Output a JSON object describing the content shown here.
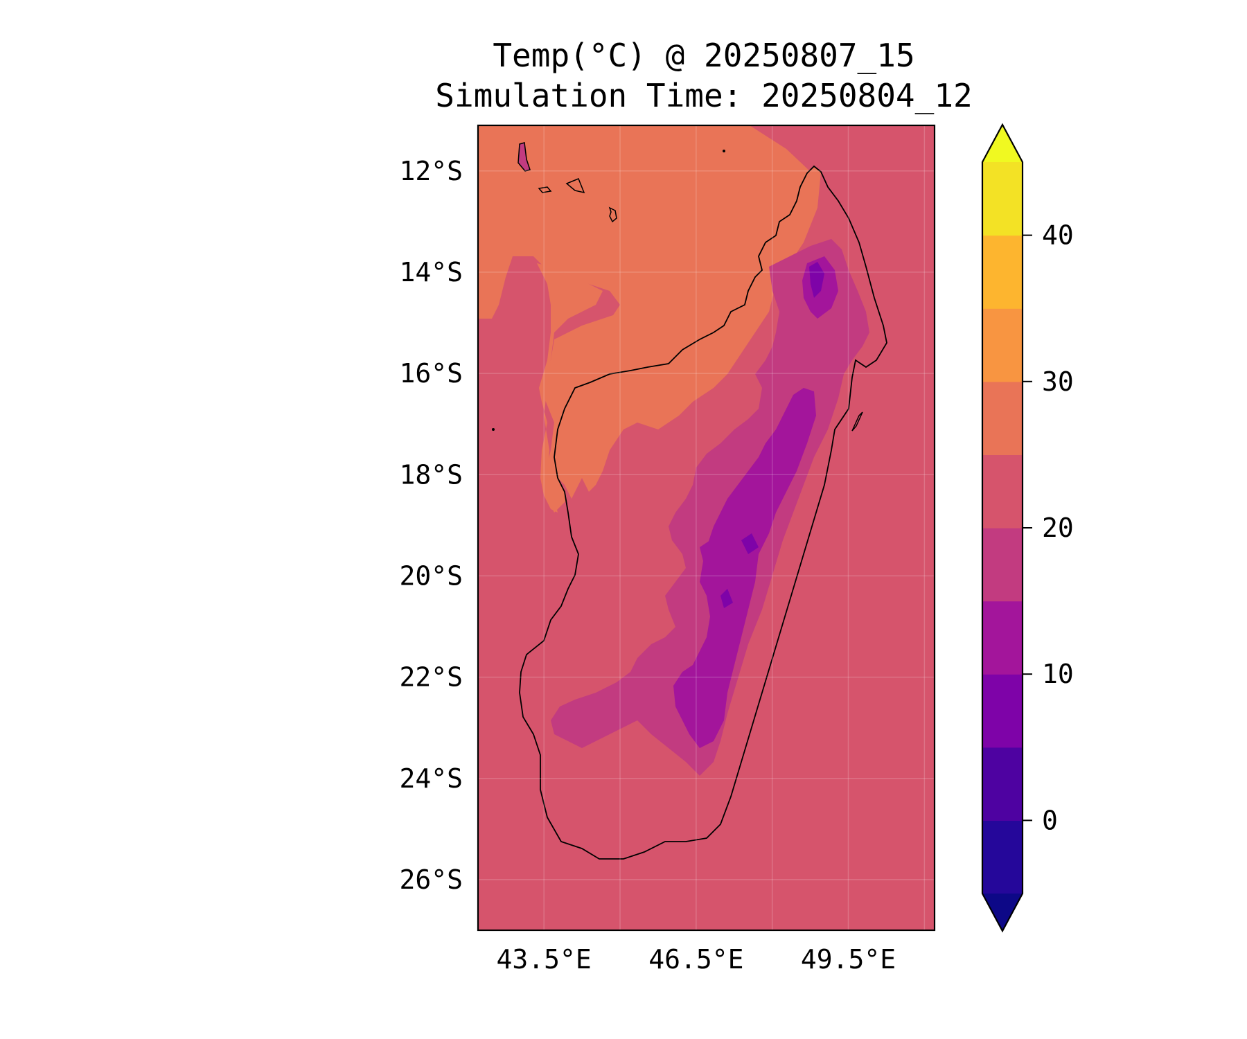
{
  "figure": {
    "title_line1": "Temp(°C) @ 20250807_15",
    "title_line2": "Simulation Time: 20250804_12"
  },
  "map": {
    "lon_range": [
      42.2,
      51.2
    ],
    "lat_range": [
      -27.0,
      -11.1
    ],
    "lat_ticks": [
      {
        "value": -12,
        "label": "12°S"
      },
      {
        "value": -14,
        "label": "14°S"
      },
      {
        "value": -16,
        "label": "16°S"
      },
      {
        "value": -18,
        "label": "18°S"
      },
      {
        "value": -20,
        "label": "20°S"
      },
      {
        "value": -22,
        "label": "22°S"
      },
      {
        "value": -24,
        "label": "24°S"
      },
      {
        "value": -26,
        "label": "26°S"
      }
    ],
    "lon_ticks": [
      {
        "value": 43.5,
        "label": "43.5°E"
      },
      {
        "value": 46.5,
        "label": "46.5°E"
      },
      {
        "value": 49.5,
        "label": "49.5°E"
      }
    ],
    "lon_gridlines": [
      43.5,
      45.0,
      46.5,
      48.0,
      49.5,
      51.0
    ]
  },
  "colorbar": {
    "ticks": [
      {
        "value": 0,
        "label": "0"
      },
      {
        "value": 10,
        "label": "10"
      },
      {
        "value": 20,
        "label": "20"
      },
      {
        "value": 30,
        "label": "30"
      },
      {
        "value": 40,
        "label": "40"
      }
    ],
    "levels": [
      {
        "from": -5,
        "to": 0,
        "color": "#25079a"
      },
      {
        "from": 0,
        "to": 5,
        "color": "#4e02a1"
      },
      {
        "from": 5,
        "to": 10,
        "color": "#7e03a8"
      },
      {
        "from": 10,
        "to": 15,
        "color": "#a3159b"
      },
      {
        "from": 15,
        "to": 20,
        "color": "#c23b80"
      },
      {
        "from": 20,
        "to": 25,
        "color": "#d6546c"
      },
      {
        "from": 25,
        "to": 30,
        "color": "#e97457"
      },
      {
        "from": 30,
        "to": 35,
        "color": "#f89541"
      },
      {
        "from": 35,
        "to": 40,
        "color": "#fdb52f"
      },
      {
        "from": 40,
        "to": 45,
        "color": "#f3e225"
      }
    ],
    "under_color": "#0d0887",
    "over_color": "#f0f921"
  },
  "colors": {
    "ocean_base": "#d6546c",
    "warm_band": "#e97457",
    "hot_patch": "#f89541",
    "cool": "#c23b80",
    "cold": "#a3159b",
    "coldest": "#7e03a8"
  }
}
